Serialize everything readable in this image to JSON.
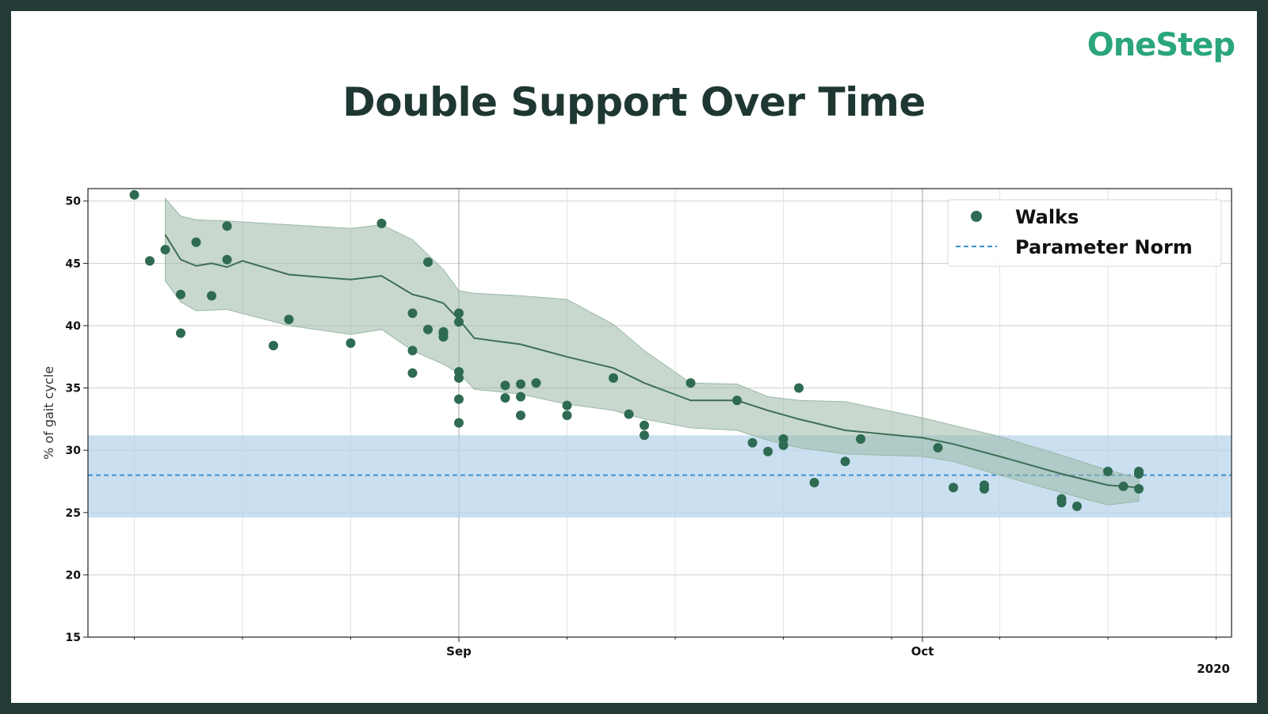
{
  "brand": "OneStep",
  "title": "Double Support Over Time",
  "chart_data": {
    "type": "scatter",
    "title": "Double Support Over Time",
    "xlabel": "",
    "ylabel": "% of gait cycle",
    "ylim": [
      15,
      51
    ],
    "yticks": [
      15,
      20,
      25,
      30,
      35,
      40,
      45,
      50
    ],
    "xlim": [
      "2020-08-08",
      "2020-10-21"
    ],
    "xticks": [
      {
        "date": "2020-09-01",
        "label": "Sep"
      },
      {
        "date": "2020-10-01",
        "label": "Oct"
      }
    ],
    "xminor": [
      "2020-08-11",
      "2020-08-18",
      "2020-08-25",
      "2020-09-08",
      "2020-09-15",
      "2020-09-22",
      "2020-09-29",
      "2020-10-06",
      "2020-10-13",
      "2020-10-20"
    ],
    "year_label": "2020",
    "grid": true,
    "legend": {
      "position": "top-right",
      "entries": [
        "Walks",
        "Parameter Norm"
      ]
    },
    "colors": {
      "walks": "#2e6b52",
      "trend": "#3d6e56",
      "band": "#9ab8a5",
      "norm_line": "#3a8fd0",
      "norm_band": "#b8d6ec"
    },
    "norm": {
      "value": 28,
      "band_low": 24.6,
      "band_high": 31.2
    },
    "series": [
      {
        "name": "Walks",
        "points": [
          [
            "2020-08-11",
            50.5
          ],
          [
            "2020-08-12",
            45.2
          ],
          [
            "2020-08-13",
            46.1
          ],
          [
            "2020-08-14",
            39.4
          ],
          [
            "2020-08-14",
            42.5
          ],
          [
            "2020-08-15",
            46.7
          ],
          [
            "2020-08-16",
            42.4
          ],
          [
            "2020-08-17",
            48.0
          ],
          [
            "2020-08-17",
            45.3
          ],
          [
            "2020-08-20",
            38.4
          ],
          [
            "2020-08-21",
            40.5
          ],
          [
            "2020-08-25",
            38.6
          ],
          [
            "2020-08-27",
            48.2
          ],
          [
            "2020-08-29",
            36.2
          ],
          [
            "2020-08-29",
            38.0
          ],
          [
            "2020-08-29",
            41.0
          ],
          [
            "2020-08-30",
            39.7
          ],
          [
            "2020-08-30",
            45.1
          ],
          [
            "2020-08-31",
            39.5
          ],
          [
            "2020-08-31",
            39.1
          ],
          [
            "2020-08-31",
            39.4
          ],
          [
            "2020-09-01",
            36.3
          ],
          [
            "2020-09-01",
            41.0
          ],
          [
            "2020-09-01",
            40.3
          ],
          [
            "2020-09-01",
            35.8
          ],
          [
            "2020-09-01",
            34.1
          ],
          [
            "2020-09-01",
            32.2
          ],
          [
            "2020-09-04",
            35.2
          ],
          [
            "2020-09-04",
            34.2
          ],
          [
            "2020-09-05",
            34.3
          ],
          [
            "2020-09-05",
            35.3
          ],
          [
            "2020-09-05",
            32.8
          ],
          [
            "2020-09-06",
            35.4
          ],
          [
            "2020-09-08",
            33.6
          ],
          [
            "2020-09-08",
            32.8
          ],
          [
            "2020-09-11",
            35.8
          ],
          [
            "2020-09-12",
            32.9
          ],
          [
            "2020-09-13",
            31.2
          ],
          [
            "2020-09-13",
            32.0
          ],
          [
            "2020-09-16",
            35.4
          ],
          [
            "2020-09-19",
            34.0
          ],
          [
            "2020-09-20",
            30.6
          ],
          [
            "2020-09-21",
            29.9
          ],
          [
            "2020-09-22",
            30.4
          ],
          [
            "2020-09-22",
            30.9
          ],
          [
            "2020-09-23",
            35.0
          ],
          [
            "2020-09-24",
            27.4
          ],
          [
            "2020-09-26",
            29.1
          ],
          [
            "2020-09-27",
            30.9
          ],
          [
            "2020-10-02",
            30.2
          ],
          [
            "2020-10-03",
            27.0
          ],
          [
            "2020-10-05",
            27.2
          ],
          [
            "2020-10-05",
            26.9
          ],
          [
            "2020-10-10",
            26.1
          ],
          [
            "2020-10-10",
            25.8
          ],
          [
            "2020-10-11",
            25.5
          ],
          [
            "2020-10-13",
            28.3
          ],
          [
            "2020-10-14",
            27.1
          ],
          [
            "2020-10-15",
            26.9
          ],
          [
            "2020-10-15",
            28.1
          ],
          [
            "2020-10-15",
            28.3
          ]
        ]
      },
      {
        "name": "Parameter Norm",
        "values": [
          28,
          28
        ]
      }
    ],
    "trend": {
      "points": [
        [
          "2020-08-13",
          47.3
        ],
        [
          "2020-08-14",
          45.3
        ],
        [
          "2020-08-15",
          44.8
        ],
        [
          "2020-08-16",
          45.0
        ],
        [
          "2020-08-17",
          44.7
        ],
        [
          "2020-08-18",
          45.2
        ],
        [
          "2020-08-21",
          44.1
        ],
        [
          "2020-08-25",
          43.7
        ],
        [
          "2020-08-27",
          44.0
        ],
        [
          "2020-08-29",
          42.5
        ],
        [
          "2020-08-30",
          42.2
        ],
        [
          "2020-08-31",
          41.8
        ],
        [
          "2020-09-01",
          40.5
        ],
        [
          "2020-09-02",
          39.0
        ],
        [
          "2020-09-05",
          38.5
        ],
        [
          "2020-09-08",
          37.5
        ],
        [
          "2020-09-11",
          36.6
        ],
        [
          "2020-09-13",
          35.4
        ],
        [
          "2020-09-16",
          34.0
        ],
        [
          "2020-09-19",
          34.0
        ],
        [
          "2020-09-21",
          33.2
        ],
        [
          "2020-09-23",
          32.5
        ],
        [
          "2020-09-26",
          31.6
        ],
        [
          "2020-10-01",
          31.0
        ],
        [
          "2020-10-03",
          30.5
        ],
        [
          "2020-10-06",
          29.5
        ],
        [
          "2020-10-10",
          28.1
        ],
        [
          "2020-10-13",
          27.2
        ],
        [
          "2020-10-15",
          27.0
        ]
      ],
      "upper": [
        [
          "2020-08-13",
          50.2
        ],
        [
          "2020-08-14",
          48.8
        ],
        [
          "2020-08-15",
          48.5
        ],
        [
          "2020-08-17",
          48.4
        ],
        [
          "2020-08-21",
          48.1
        ],
        [
          "2020-08-25",
          47.8
        ],
        [
          "2020-08-27",
          48.1
        ],
        [
          "2020-08-29",
          46.9
        ],
        [
          "2020-08-31",
          44.5
        ],
        [
          "2020-09-01",
          42.8
        ],
        [
          "2020-09-02",
          42.6
        ],
        [
          "2020-09-05",
          42.4
        ],
        [
          "2020-09-08",
          42.1
        ],
        [
          "2020-09-11",
          40.1
        ],
        [
          "2020-09-13",
          38.0
        ],
        [
          "2020-09-16",
          35.4
        ],
        [
          "2020-09-19",
          35.3
        ],
        [
          "2020-09-21",
          34.3
        ],
        [
          "2020-09-23",
          34.0
        ],
        [
          "2020-09-26",
          33.9
        ],
        [
          "2020-10-01",
          32.6
        ],
        [
          "2020-10-03",
          32.0
        ],
        [
          "2020-10-06",
          31.1
        ],
        [
          "2020-10-10",
          29.6
        ],
        [
          "2020-10-13",
          28.4
        ],
        [
          "2020-10-15",
          27.8
        ]
      ],
      "lower": [
        [
          "2020-08-13",
          43.6
        ],
        [
          "2020-08-14",
          41.9
        ],
        [
          "2020-08-15",
          41.2
        ],
        [
          "2020-08-17",
          41.3
        ],
        [
          "2020-08-21",
          40.0
        ],
        [
          "2020-08-25",
          39.3
        ],
        [
          "2020-08-27",
          39.7
        ],
        [
          "2020-08-29",
          38.0
        ],
        [
          "2020-08-31",
          36.9
        ],
        [
          "2020-09-01",
          36.2
        ],
        [
          "2020-09-02",
          34.9
        ],
        [
          "2020-09-05",
          34.5
        ],
        [
          "2020-09-08",
          33.7
        ],
        [
          "2020-09-11",
          33.2
        ],
        [
          "2020-09-13",
          32.5
        ],
        [
          "2020-09-16",
          31.8
        ],
        [
          "2020-09-19",
          31.6
        ],
        [
          "2020-09-21",
          30.8
        ],
        [
          "2020-09-23",
          30.2
        ],
        [
          "2020-09-26",
          29.7
        ],
        [
          "2020-10-01",
          29.5
        ],
        [
          "2020-10-03",
          29.1
        ],
        [
          "2020-10-06",
          28.0
        ],
        [
          "2020-10-10",
          26.6
        ],
        [
          "2020-10-13",
          25.6
        ],
        [
          "2020-10-15",
          25.9
        ]
      ]
    }
  }
}
